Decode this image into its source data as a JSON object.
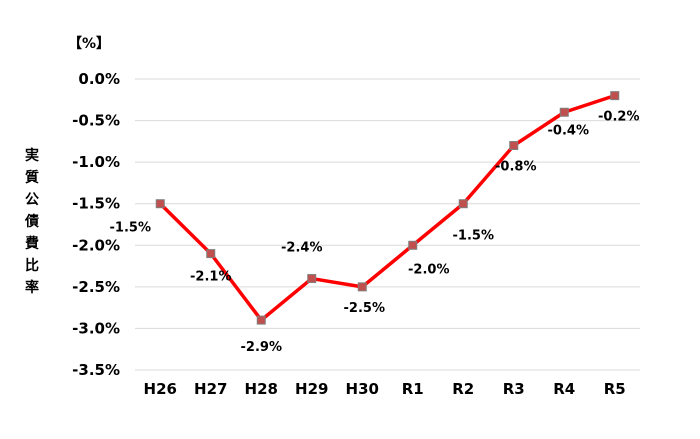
{
  "chart_data": {
    "type": "line",
    "unit_label": "【%】",
    "ylabel": "実質公債費比率",
    "categories": [
      "H26",
      "H27",
      "H28",
      "H29",
      "H30",
      "R1",
      "R2",
      "R3",
      "R4",
      "R5"
    ],
    "values": [
      -1.5,
      -2.1,
      -2.9,
      -2.4,
      -2.5,
      -2.0,
      -1.5,
      -0.8,
      -0.4,
      -0.2
    ],
    "data_labels": [
      "-1.5%",
      "-2.1%",
      "-2.9%",
      "-2.4%",
      "-2.5%",
      "-2.0%",
      "-1.5%",
      "-0.8%",
      "-0.4%",
      "-0.2%"
    ],
    "yticks": [
      "0.0%",
      "-0.5%",
      "-1.0%",
      "-1.5%",
      "-2.0%",
      "-2.5%",
      "-3.0%",
      "-3.5%"
    ],
    "ylim": [
      -3.5,
      0.0
    ],
    "grid": true,
    "line_color": "#ff0000",
    "marker_color": "#c0504d"
  }
}
